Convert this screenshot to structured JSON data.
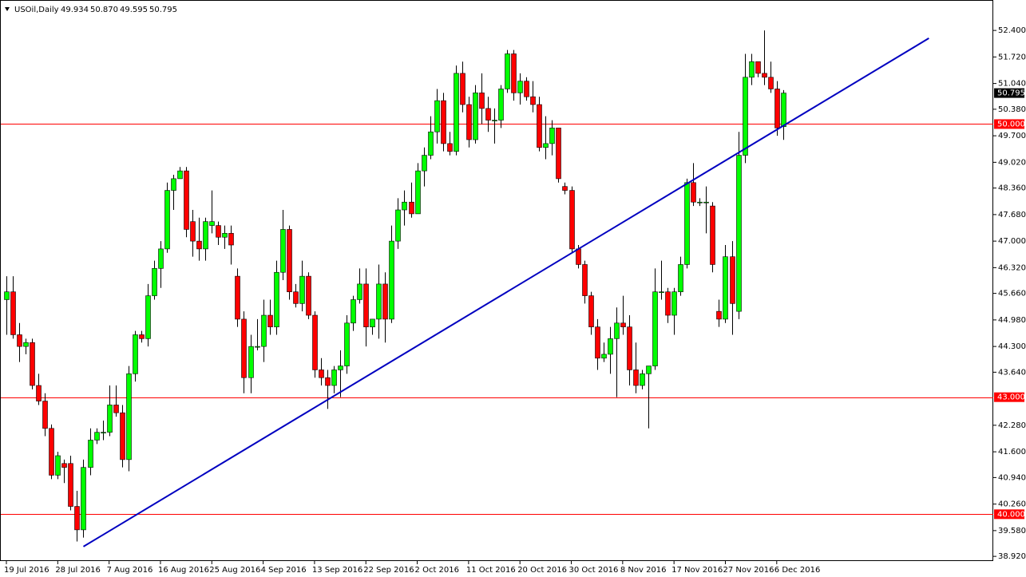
{
  "chart_data": {
    "type": "candlestick",
    "title": "USOil,Daily",
    "last_bar_labels": [
      "49.934",
      "50.870",
      "49.595",
      "50.795"
    ],
    "categories": [
      "19 Jul 2016",
      null,
      null,
      null,
      null,
      null,
      null,
      null,
      "28 Jul 2016",
      null,
      null,
      null,
      null,
      null,
      null,
      null,
      "7 Aug 2016",
      null,
      null,
      null,
      null,
      null,
      null,
      null,
      "16 Aug 2016",
      null,
      null,
      null,
      null,
      null,
      null,
      null,
      "25 Aug 2016",
      null,
      null,
      null,
      null,
      null,
      null,
      null,
      "4 Sep 2016",
      null,
      null,
      null,
      null,
      null,
      null,
      null,
      "13 Sep 2016",
      null,
      null,
      null,
      null,
      null,
      null,
      null,
      "22 Sep 2016",
      null,
      null,
      null,
      null,
      null,
      null,
      null,
      "2 Oct 2016",
      null,
      null,
      null,
      null,
      null,
      null,
      null,
      "11 Oct 2016",
      null,
      null,
      null,
      null,
      null,
      null,
      null,
      "20 Oct 2016",
      null,
      null,
      null,
      null,
      null,
      null,
      null,
      "30 Oct 2016",
      null,
      null,
      null,
      null,
      null,
      null,
      null,
      "8 Nov 2016",
      null,
      null,
      null,
      null,
      null,
      null,
      null,
      "17 Nov 2016",
      null,
      null,
      null,
      null,
      null,
      null,
      null,
      "27 Nov 2016",
      null,
      null,
      null,
      null,
      null,
      null,
      null,
      "6 Dec 2016",
      null
    ],
    "open": [
      45.5,
      45.7,
      44.6,
      44.3,
      44.4,
      43.3,
      42.9,
      42.2,
      41.0,
      41.3,
      41.3,
      40.2,
      39.6,
      41.2,
      41.9,
      42.1,
      42.1,
      42.8,
      42.6,
      41.4,
      43.6,
      44.6,
      44.5,
      45.6,
      46.3,
      46.8,
      48.3,
      48.6,
      48.8,
      47.5,
      47.0,
      46.8,
      47.4,
      47.4,
      47.1,
      47.2,
      46.1,
      45.0,
      43.5,
      44.3,
      44.3,
      45.1,
      44.8,
      46.2,
      47.3,
      45.7,
      45.4,
      46.1,
      45.1,
      43.7,
      43.5,
      43.3,
      43.7,
      43.8,
      44.9,
      45.5,
      45.9,
      44.8,
      45.0,
      45.9,
      45.0,
      47.0,
      47.8,
      48.0,
      47.7,
      48.8,
      49.2,
      49.8,
      50.6,
      49.5,
      49.3,
      51.3,
      50.5,
      49.6,
      50.8,
      50.4,
      50.1,
      50.1,
      50.9,
      51.8,
      50.8,
      51.1,
      50.7,
      50.5,
      49.4,
      49.5,
      49.9,
      48.4,
      48.3,
      46.8,
      46.4,
      45.6,
      44.8,
      44.0,
      44.1,
      44.5,
      44.9,
      44.8,
      43.7,
      43.3,
      43.6,
      43.8,
      45.7,
      45.7,
      45.1,
      45.7,
      46.4,
      48.5,
      48.0,
      48.0,
      47.9,
      45.2,
      45.0,
      46.6,
      45.2,
      49.2,
      51.2,
      51.6,
      51.3,
      51.2,
      50.9,
      49.934
    ],
    "high": [
      46.1,
      46.1,
      44.9,
      44.5,
      44.5,
      43.6,
      43.1,
      42.3,
      41.6,
      41.4,
      41.5,
      40.6,
      41.4,
      42.2,
      42.2,
      42.4,
      43.3,
      43.3,
      42.8,
      43.8,
      44.7,
      44.7,
      45.9,
      46.5,
      47.0,
      48.5,
      48.7,
      48.9,
      48.9,
      47.8,
      47.6,
      47.6,
      48.3,
      47.5,
      47.4,
      47.4,
      46.3,
      45.2,
      44.6,
      45.0,
      45.5,
      45.5,
      46.5,
      47.8,
      47.4,
      45.9,
      46.5,
      46.2,
      45.2,
      44.0,
      43.7,
      43.8,
      44.2,
      45.1,
      45.6,
      46.3,
      46.3,
      45.0,
      46.4,
      46.2,
      47.4,
      48.1,
      48.3,
      48.5,
      49.0,
      49.4,
      50.2,
      50.9,
      50.8,
      49.8,
      51.5,
      51.6,
      50.7,
      51.0,
      51.3,
      50.7,
      50.4,
      51.0,
      51.9,
      51.9,
      51.3,
      51.2,
      51.1,
      50.7,
      50.2,
      50.1,
      49.9,
      48.5,
      48.4,
      46.9,
      46.5,
      45.7,
      45.0,
      44.4,
      44.8,
      45.3,
      45.6,
      45.1,
      44.4,
      43.7,
      43.8,
      46.3,
      46.5,
      45.8,
      45.8,
      46.6,
      48.6,
      49.0,
      48.1,
      48.4,
      48.0,
      45.5,
      46.9,
      47.0,
      49.8,
      51.8,
      51.8,
      51.6,
      52.4,
      51.6,
      51.1,
      50.87
    ],
    "low": [
      44.6,
      44.5,
      43.9,
      44.1,
      43.2,
      42.8,
      42.0,
      40.9,
      40.9,
      40.8,
      40.1,
      39.3,
      39.4,
      41.0,
      41.8,
      41.9,
      42.0,
      42.5,
      41.2,
      41.1,
      43.4,
      44.4,
      44.3,
      45.5,
      45.8,
      46.7,
      47.8,
      48.6,
      47.1,
      46.6,
      46.5,
      46.5,
      47.2,
      46.9,
      46.8,
      46.4,
      44.8,
      43.1,
      43.1,
      44.2,
      43.9,
      44.6,
      44.6,
      46.0,
      45.5,
      45.3,
      45.2,
      45.0,
      43.5,
      43.3,
      42.7,
      43.1,
      43.0,
      43.6,
      44.7,
      45.4,
      44.3,
      44.6,
      44.5,
      44.4,
      44.9,
      46.8,
      47.4,
      47.6,
      47.7,
      48.4,
      49.1,
      49.5,
      49.3,
      49.2,
      49.2,
      50.3,
      49.4,
      49.5,
      50.0,
      49.8,
      49.5,
      49.9,
      50.8,
      50.6,
      50.5,
      50.6,
      50.3,
      49.3,
      49.1,
      49.2,
      48.5,
      48.2,
      46.7,
      46.3,
      45.4,
      44.6,
      43.7,
      43.9,
      43.6,
      43.0,
      44.6,
      43.3,
      43.1,
      43.2,
      42.2,
      43.7,
      45.5,
      44.9,
      44.6,
      45.6,
      46.3,
      47.9,
      47.9,
      47.2,
      46.2,
      44.8,
      44.9,
      44.6,
      45.0,
      49.0,
      51.0,
      51.2,
      51.0,
      50.8,
      49.7,
      49.595
    ],
    "close": [
      45.7,
      44.6,
      44.3,
      44.4,
      43.3,
      42.9,
      42.2,
      41.0,
      41.5,
      41.2,
      40.2,
      39.6,
      41.2,
      41.9,
      42.1,
      42.1,
      42.8,
      42.6,
      41.4,
      43.6,
      44.6,
      44.5,
      45.6,
      46.3,
      46.8,
      48.3,
      48.6,
      48.8,
      47.3,
      47.0,
      46.8,
      47.5,
      47.5,
      47.1,
      47.2,
      46.9,
      45.0,
      43.5,
      44.3,
      44.3,
      45.1,
      44.8,
      46.2,
      47.3,
      45.7,
      45.4,
      46.1,
      45.1,
      43.7,
      43.5,
      43.3,
      43.7,
      43.8,
      44.9,
      45.5,
      45.9,
      44.8,
      45.0,
      45.9,
      45.0,
      47.0,
      47.8,
      48.0,
      47.7,
      48.8,
      49.2,
      49.8,
      50.6,
      49.5,
      49.3,
      51.3,
      50.5,
      49.6,
      50.8,
      50.4,
      50.1,
      50.1,
      50.9,
      51.8,
      50.8,
      51.1,
      50.7,
      50.5,
      49.4,
      49.5,
      49.9,
      48.6,
      48.3,
      46.8,
      46.4,
      45.6,
      44.8,
      44.0,
      44.1,
      44.5,
      44.9,
      44.8,
      43.7,
      43.3,
      43.6,
      43.8,
      45.7,
      45.7,
      45.1,
      45.7,
      46.4,
      48.5,
      48.0,
      48.0,
      48.0,
      46.4,
      45.0,
      46.6,
      45.4,
      49.2,
      51.2,
      51.6,
      51.3,
      51.2,
      50.9,
      49.9,
      50.795
    ],
    "up_color": "#00ff00",
    "down_color": "#ff0000",
    "ylim": [
      38.8,
      53.18
    ],
    "yticks": [
      {
        "value": 52.4,
        "label": "52.400"
      },
      {
        "value": 51.72,
        "label": "51.720"
      },
      {
        "value": 51.04,
        "label": "51.040"
      },
      {
        "value": 50.38,
        "label": "50.380"
      },
      {
        "value": 49.7,
        "label": "49.700"
      },
      {
        "value": 49.02,
        "label": "49.020"
      },
      {
        "value": 48.36,
        "label": "48.360"
      },
      {
        "value": 47.68,
        "label": "47.680"
      },
      {
        "value": 47,
        "label": "47.000"
      },
      {
        "value": 46.32,
        "label": "46.320"
      },
      {
        "value": 45.66,
        "label": "45.660"
      },
      {
        "value": 44.98,
        "label": "44.980"
      },
      {
        "value": 44.3,
        "label": "44.300"
      },
      {
        "value": 43.64,
        "label": "43.640"
      },
      {
        "value": 42.28,
        "label": "42.280"
      },
      {
        "value": 41.6,
        "label": "41.600"
      },
      {
        "value": 40.94,
        "label": "40.940"
      },
      {
        "value": 40.26,
        "label": "40.260"
      },
      {
        "value": 39.58,
        "label": "39.580"
      },
      {
        "value": 38.92,
        "label": "38.920"
      }
    ],
    "levels": [
      {
        "value": 50,
        "label": "50.000"
      },
      {
        "value": 43,
        "label": "43.000"
      },
      {
        "value": 40,
        "label": "40.000"
      }
    ],
    "level_color": "#ff0000",
    "trendline": {
      "start_index": 12,
      "start_value": 39.17,
      "end_index": 143.7,
      "end_value": 52.2,
      "color": "#0000c0"
    }
  }
}
